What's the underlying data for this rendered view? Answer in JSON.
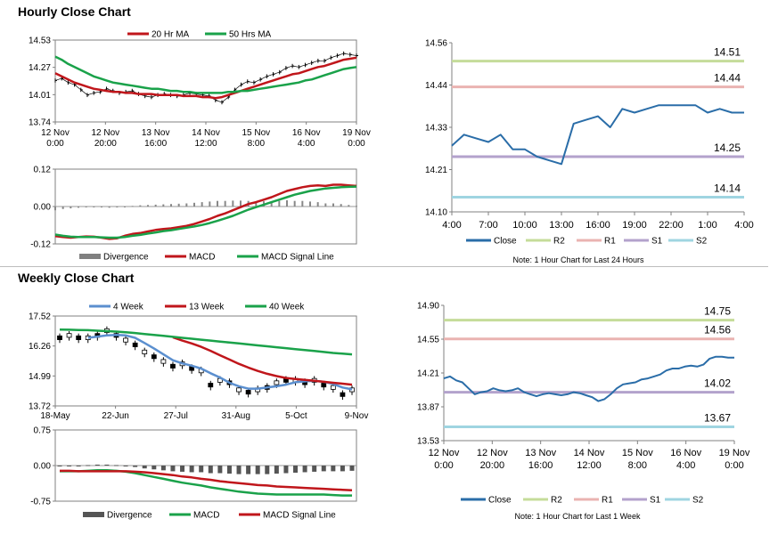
{
  "sections": {
    "hourly_title": "Hourly Close Chart",
    "weekly_title": "Weekly Close Chart"
  },
  "chart_data": [
    {
      "id": "hourly_price",
      "type": "line",
      "legend": [
        "20 Hr MA",
        "50 Hrs MA"
      ],
      "ylim": [
        13.74,
        14.53
      ],
      "yticks": [
        "14.53",
        "14.27",
        "14.01",
        "13.74"
      ],
      "xticks": [
        [
          "12 Nov",
          "0:00"
        ],
        [
          "12 Nov",
          "20:00"
        ],
        [
          "13 Nov",
          "16:00"
        ],
        [
          "14 Nov",
          "12:00"
        ],
        [
          "15 Nov",
          "8:00"
        ],
        [
          "16 Nov",
          "4:00"
        ],
        [
          "19 Nov",
          "0:00"
        ]
      ],
      "close_approx": [
        14.14,
        14.16,
        14.12,
        14.1,
        14.05,
        14.0,
        14.02,
        14.03,
        14.06,
        14.04,
        14.02,
        14.03,
        14.04,
        14.01,
        13.99,
        13.98,
        14.0,
        14.01,
        14.0,
        13.99,
        14.0,
        14.02,
        14.01,
        14.0,
        13.99,
        13.95,
        13.93,
        13.98,
        14.05,
        14.1,
        14.13,
        14.12,
        14.15,
        14.18,
        14.2,
        14.22,
        14.26,
        14.28,
        14.27,
        14.29,
        14.31,
        14.33,
        14.33,
        14.36,
        14.38,
        14.4,
        14.39,
        14.38
      ],
      "series": [
        {
          "name": "20 Hr MA",
          "color": "#c0161b",
          "values": [
            14.21,
            14.18,
            14.15,
            14.12,
            14.1,
            14.08,
            14.06,
            14.05,
            14.04,
            14.03,
            14.03,
            14.02,
            14.02,
            14.01,
            14.01,
            14.01,
            14.0,
            14.0,
            14.0,
            14.0,
            13.99,
            13.99,
            13.99,
            13.98,
            13.98,
            13.97,
            13.98,
            14.0,
            14.02,
            14.04,
            14.06,
            14.08,
            14.1,
            14.12,
            14.14,
            14.16,
            14.18,
            14.2,
            14.21,
            14.23,
            14.25,
            14.27,
            14.28,
            14.3,
            14.32,
            14.34,
            14.35,
            14.36
          ]
        },
        {
          "name": "50 Hrs MA",
          "color": "#1aa24a",
          "values": [
            14.37,
            14.34,
            14.3,
            14.27,
            14.24,
            14.21,
            14.18,
            14.16,
            14.14,
            14.12,
            14.11,
            14.1,
            14.09,
            14.08,
            14.07,
            14.06,
            14.06,
            14.05,
            14.04,
            14.04,
            14.03,
            14.03,
            14.02,
            14.02,
            14.02,
            14.02,
            14.02,
            14.03,
            14.03,
            14.04,
            14.04,
            14.05,
            14.06,
            14.07,
            14.08,
            14.09,
            14.1,
            14.11,
            14.12,
            14.14,
            14.15,
            14.17,
            14.19,
            14.21,
            14.23,
            14.25,
            14.26,
            14.27
          ]
        }
      ]
    },
    {
      "id": "hourly_macd",
      "type": "line",
      "legend": [
        "Divergence",
        "MACD",
        "MACD Signal Line"
      ],
      "ylim": [
        -0.12,
        0.12
      ],
      "yticks": [
        "0.12",
        "0.00",
        "-0.12"
      ],
      "series": [
        {
          "name": "MACD",
          "color": "#c0161b",
          "values": [
            -0.095,
            -0.098,
            -0.1,
            -0.098,
            -0.096,
            -0.097,
            -0.1,
            -0.104,
            -0.102,
            -0.094,
            -0.088,
            -0.085,
            -0.08,
            -0.075,
            -0.072,
            -0.07,
            -0.066,
            -0.062,
            -0.056,
            -0.048,
            -0.04,
            -0.03,
            -0.022,
            -0.012,
            -0.002,
            0.008,
            0.014,
            0.022,
            0.03,
            0.04,
            0.05,
            0.056,
            0.062,
            0.066,
            0.068,
            0.066,
            0.07,
            0.07,
            0.068,
            0.066
          ]
        },
        {
          "name": "MACD Signal Line",
          "color": "#1aa24a",
          "values": [
            -0.09,
            -0.094,
            -0.097,
            -0.098,
            -0.098,
            -0.098,
            -0.099,
            -0.1,
            -0.1,
            -0.098,
            -0.094,
            -0.091,
            -0.087,
            -0.083,
            -0.079,
            -0.076,
            -0.072,
            -0.068,
            -0.064,
            -0.059,
            -0.053,
            -0.046,
            -0.038,
            -0.03,
            -0.02,
            -0.01,
            -0.002,
            0.006,
            0.014,
            0.022,
            0.03,
            0.038,
            0.044,
            0.05,
            0.054,
            0.058,
            0.06,
            0.062,
            0.063,
            0.064
          ]
        }
      ],
      "divergence": [
        -0.012,
        -0.008,
        -0.006,
        -0.004,
        -0.002,
        -0.002,
        -0.003,
        -0.004,
        -0.003,
        -0.002,
        0.002,
        0.004,
        0.005,
        0.006,
        0.007,
        0.008,
        0.009,
        0.01,
        0.012,
        0.014,
        0.016,
        0.018,
        0.018,
        0.019,
        0.019,
        0.018,
        0.017,
        0.017,
        0.016,
        0.018,
        0.02,
        0.018,
        0.018,
        0.016,
        0.014,
        0.01,
        0.01,
        0.008,
        0.005,
        0.002
      ]
    },
    {
      "id": "hourly_24h",
      "type": "line",
      "note": "Note: 1 Hour Chart for Last 24 Hours",
      "legend": [
        "Close",
        "R2",
        "R1",
        "S1",
        "S2"
      ],
      "ylim": [
        14.1,
        14.56
      ],
      "yticks": [
        "14.56",
        "14.44",
        "14.33",
        "14.21",
        "14.10"
      ],
      "x": [
        "4:00",
        "5:00",
        "6:00",
        "7:00",
        "8:00",
        "9:00",
        "10:00",
        "11:00",
        "12:00",
        "13:00",
        "14:00",
        "15:00",
        "16:00",
        "17:00",
        "18:00",
        "19:00",
        "20:00",
        "21:00",
        "22:00",
        "23:00",
        "0:00",
        "1:00",
        "2:00",
        "3:00",
        "4:00"
      ],
      "xticks": [
        "4:00",
        "7:00",
        "10:00",
        "13:00",
        "16:00",
        "19:00",
        "22:00",
        "1:00",
        "4:00"
      ],
      "close": [
        14.28,
        14.31,
        14.3,
        14.29,
        14.31,
        14.27,
        14.27,
        14.25,
        14.24,
        14.23,
        14.34,
        14.35,
        14.36,
        14.33,
        14.38,
        14.37,
        14.38,
        14.39,
        14.39,
        14.39,
        14.39,
        14.37,
        14.38,
        14.37,
        14.37
      ],
      "levels": [
        {
          "name": "R2",
          "value": 14.51,
          "label": "14.51",
          "color": "#c5dc9a"
        },
        {
          "name": "R1",
          "value": 14.44,
          "label": "14.44",
          "color": "#eab3b1"
        },
        {
          "name": "S1",
          "value": 14.25,
          "label": "14.25",
          "color": "#b3a2cc"
        },
        {
          "name": "S2",
          "value": 14.14,
          "label": "14.14",
          "color": "#9fd5e1"
        }
      ],
      "close_color": "#2a6da8"
    },
    {
      "id": "weekly_price",
      "type": "line",
      "legend": [
        "4 Week",
        "13 Week",
        "40 Week"
      ],
      "ylim": [
        13.72,
        17.52
      ],
      "yticks": [
        "17.52",
        "16.26",
        "14.99",
        "13.72"
      ],
      "xticks": [
        "18-May",
        "22-Jun",
        "27-Jul",
        "31-Aug",
        "5-Oct",
        "9-Nov"
      ],
      "close_approx": [
        16.6,
        16.7,
        16.6,
        16.6,
        16.7,
        16.9,
        16.7,
        16.5,
        16.3,
        16.0,
        15.8,
        15.6,
        15.4,
        15.5,
        15.3,
        15.2,
        14.6,
        14.8,
        14.7,
        14.4,
        14.3,
        14.4,
        14.5,
        14.7,
        14.8,
        14.8,
        14.7,
        14.8,
        14.6,
        14.5,
        14.2,
        14.4
      ],
      "series": [
        {
          "name": "4 Week",
          "color": "#5b8fcf",
          "values": [
            null,
            null,
            null,
            16.6,
            16.65,
            16.7,
            16.72,
            16.7,
            16.6,
            16.38,
            16.15,
            15.9,
            15.65,
            15.52,
            15.42,
            15.3,
            15.1,
            14.92,
            14.7,
            14.55,
            14.45,
            14.45,
            14.5,
            14.55,
            14.62,
            14.72,
            14.76,
            14.78,
            14.74,
            14.65,
            14.5,
            14.42
          ]
        },
        {
          "name": "13 Week",
          "color": "#c0161b",
          "values": [
            null,
            null,
            null,
            null,
            null,
            null,
            null,
            null,
            null,
            null,
            null,
            null,
            16.62,
            16.48,
            16.36,
            16.22,
            16.05,
            15.86,
            15.68,
            15.5,
            15.34,
            15.2,
            15.08,
            14.98,
            14.9,
            14.86,
            14.82,
            14.78,
            14.74,
            14.7,
            14.66,
            14.62
          ]
        },
        {
          "name": "40 Week",
          "color": "#1aa24a",
          "values": [
            16.95,
            16.94,
            16.93,
            16.92,
            16.9,
            16.88,
            16.86,
            16.83,
            16.8,
            16.76,
            16.72,
            16.68,
            16.64,
            16.6,
            16.56,
            16.52,
            16.48,
            16.44,
            16.4,
            16.36,
            16.32,
            16.28,
            16.24,
            16.2,
            16.16,
            16.12,
            16.08,
            16.04,
            16.0,
            15.96,
            15.93,
            15.9
          ]
        }
      ]
    },
    {
      "id": "weekly_macd",
      "type": "line",
      "legend": [
        "Divergence",
        "MACD",
        "MACD Signal Line"
      ],
      "ylim": [
        -0.75,
        0.75
      ],
      "yticks": [
        "0.75",
        "0.00",
        "-0.75"
      ],
      "series": [
        {
          "name": "MACD",
          "color": "#1aa24a",
          "values": [
            -0.12,
            -0.12,
            -0.12,
            -0.11,
            -0.1,
            -0.1,
            -0.11,
            -0.13,
            -0.16,
            -0.2,
            -0.24,
            -0.28,
            -0.32,
            -0.36,
            -0.39,
            -0.42,
            -0.46,
            -0.49,
            -0.52,
            -0.55,
            -0.57,
            -0.59,
            -0.6,
            -0.61,
            -0.61,
            -0.61,
            -0.61,
            -0.61,
            -0.61,
            -0.62,
            -0.63,
            -0.63
          ]
        },
        {
          "name": "MACD Signal Line",
          "color": "#c0161b",
          "values": [
            -0.11,
            -0.11,
            -0.12,
            -0.12,
            -0.12,
            -0.12,
            -0.12,
            -0.12,
            -0.13,
            -0.14,
            -0.16,
            -0.18,
            -0.2,
            -0.23,
            -0.25,
            -0.28,
            -0.3,
            -0.33,
            -0.35,
            -0.37,
            -0.39,
            -0.41,
            -0.42,
            -0.44,
            -0.45,
            -0.46,
            -0.47,
            -0.48,
            -0.49,
            -0.5,
            -0.51,
            -0.52
          ]
        }
      ],
      "divergence": [
        -0.01,
        0.0,
        0.0,
        0.01,
        0.02,
        0.02,
        0.01,
        -0.01,
        -0.03,
        -0.06,
        -0.08,
        -0.1,
        -0.12,
        -0.13,
        -0.14,
        -0.14,
        -0.16,
        -0.16,
        -0.17,
        -0.18,
        -0.18,
        -0.18,
        -0.18,
        -0.17,
        -0.16,
        -0.15,
        -0.14,
        -0.13,
        -0.12,
        -0.12,
        -0.12,
        -0.11
      ]
    },
    {
      "id": "weekly_week",
      "type": "line",
      "note": "Note: 1 Hour Chart for Last 1 Week",
      "legend": [
        "Close",
        "R2",
        "R1",
        "S1",
        "S2"
      ],
      "ylim": [
        13.53,
        14.9
      ],
      "yticks": [
        "14.90",
        "14.55",
        "14.21",
        "13.87",
        "13.53"
      ],
      "xticks": [
        [
          "12 Nov",
          "0:00"
        ],
        [
          "12 Nov",
          "20:00"
        ],
        [
          "13 Nov",
          "16:00"
        ],
        [
          "14 Nov",
          "12:00"
        ],
        [
          "15 Nov",
          "8:00"
        ],
        [
          "16 Nov",
          "4:00"
        ],
        [
          "19 Nov",
          "0:00"
        ]
      ],
      "close_approx": [
        14.16,
        14.18,
        14.14,
        14.12,
        14.06,
        14.0,
        14.02,
        14.03,
        14.06,
        14.04,
        14.03,
        14.04,
        14.06,
        14.02,
        14.0,
        13.98,
        14.0,
        14.01,
        14.0,
        13.99,
        14.0,
        14.02,
        14.01,
        13.99,
        13.97,
        13.93,
        13.95,
        14.0,
        14.06,
        14.1,
        14.11,
        14.12,
        14.15,
        14.16,
        14.18,
        14.2,
        14.24,
        14.26,
        14.26,
        14.28,
        14.29,
        14.28,
        14.3,
        14.36,
        14.38,
        14.38,
        14.37,
        14.37
      ],
      "levels": [
        {
          "name": "R2",
          "value": 14.75,
          "label": "14.75",
          "color": "#c5dc9a"
        },
        {
          "name": "R1",
          "value": 14.56,
          "label": "14.56",
          "color": "#eab3b1"
        },
        {
          "name": "S1",
          "value": 14.02,
          "label": "14.02",
          "color": "#b3a2cc"
        },
        {
          "name": "S2",
          "value": 13.67,
          "label": "13.67",
          "color": "#9fd5e1"
        }
      ],
      "close_color": "#2a6da8"
    }
  ]
}
